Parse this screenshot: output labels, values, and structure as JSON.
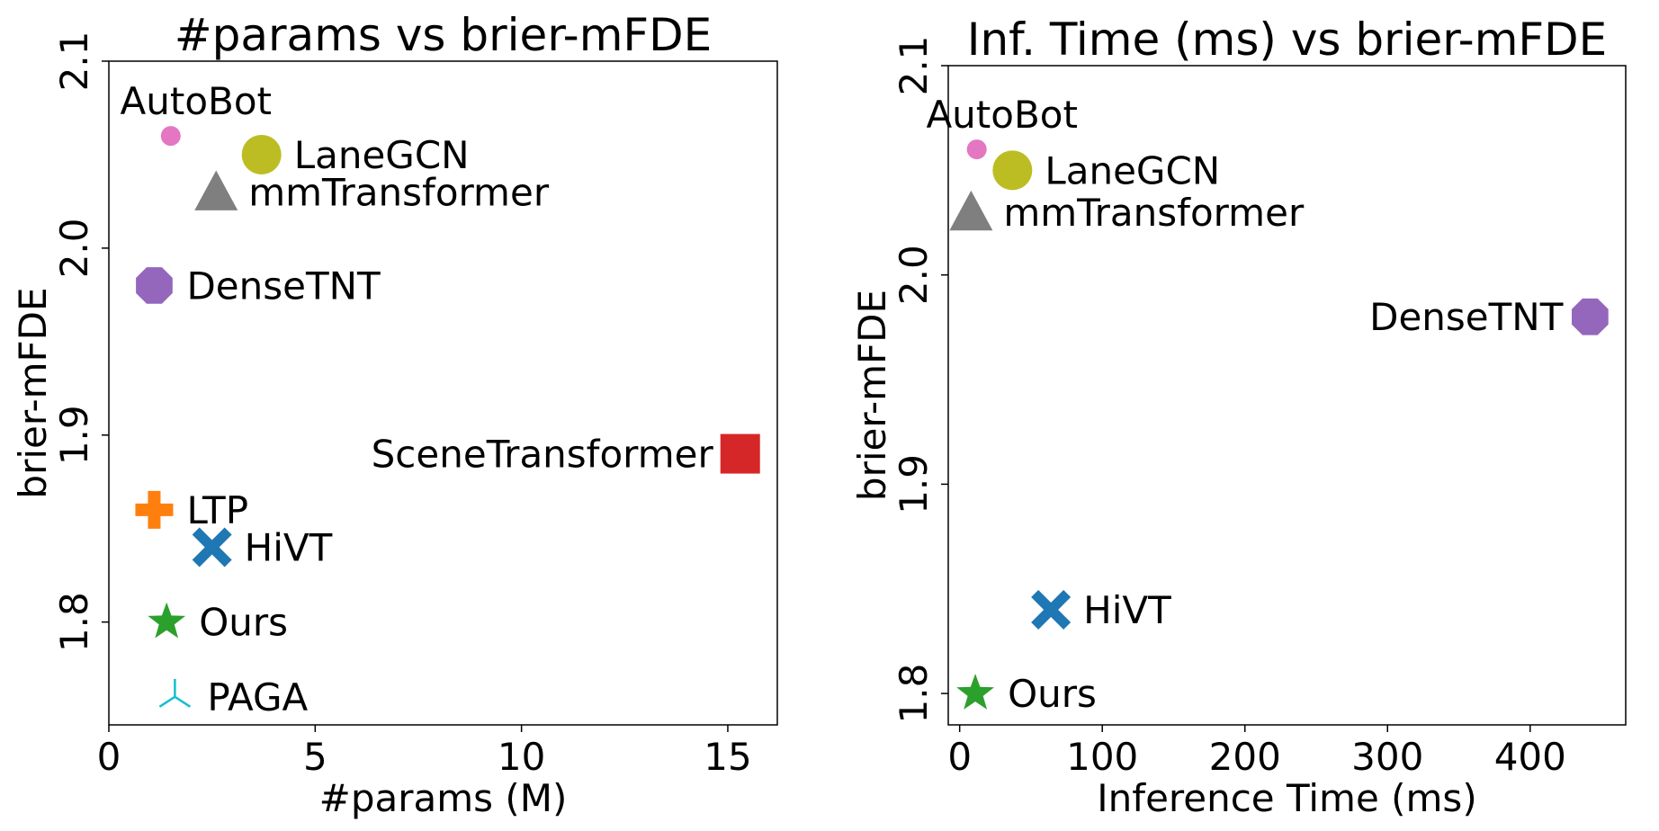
{
  "chart_data": [
    {
      "type": "scatter",
      "title": "#params vs brier-mFDE",
      "xlabel": "#params (M)",
      "ylabel": "brier-mFDE",
      "xlim": [
        0,
        16.2
      ],
      "ylim": [
        1.745,
        2.1
      ],
      "xticks": [
        0,
        5,
        10,
        15
      ],
      "yticks": [
        1.8,
        1.9,
        2.0,
        2.1
      ],
      "xtick_labels": [
        "0",
        "5",
        "10",
        "15"
      ],
      "ytick_labels": [
        "1.8",
        "1.9",
        "2.0",
        "2.1"
      ],
      "grid": false,
      "points": [
        {
          "label": "AutoBot",
          "x": 1.5,
          "y": 2.06,
          "marker": "circle-small",
          "color": "#e377c2",
          "label_pos": "above"
        },
        {
          "label": "LaneGCN",
          "x": 3.7,
          "y": 2.05,
          "marker": "circle",
          "color": "#bcbd22",
          "label_pos": "right"
        },
        {
          "label": "mmTransformer",
          "x": 2.6,
          "y": 2.03,
          "marker": "triangle",
          "color": "#7f7f7f",
          "label_pos": "right"
        },
        {
          "label": "DenseTNT",
          "x": 1.1,
          "y": 1.98,
          "marker": "octagon",
          "color": "#9467bd",
          "label_pos": "right"
        },
        {
          "label": "SceneTransformer",
          "x": 15.3,
          "y": 1.89,
          "marker": "square",
          "color": "#d62728",
          "label_pos": "left"
        },
        {
          "label": "LTP",
          "x": 1.1,
          "y": 1.86,
          "marker": "plus",
          "color": "#ff7f0e",
          "label_pos": "right"
        },
        {
          "label": "HiVT",
          "x": 2.5,
          "y": 1.84,
          "marker": "x",
          "color": "#1f77b4",
          "label_pos": "right"
        },
        {
          "label": "Ours",
          "x": 1.4,
          "y": 1.8,
          "marker": "star",
          "color": "#2ca02c",
          "label_pos": "right"
        },
        {
          "label": "PAGA",
          "x": 1.6,
          "y": 1.76,
          "marker": "tri",
          "color": "#17becf",
          "label_pos": "right"
        }
      ]
    },
    {
      "type": "scatter",
      "title": "Inf. Time (ms) vs brier-mFDE",
      "xlabel": "Inference Time (ms)",
      "ylabel": "brier-mFDE",
      "xlim": [
        -8,
        467
      ],
      "ylim": [
        1.785,
        2.1
      ],
      "xticks": [
        0,
        100,
        200,
        300,
        400
      ],
      "yticks": [
        1.8,
        1.9,
        2.0,
        2.1
      ],
      "xtick_labels": [
        "0",
        "100",
        "200",
        "300",
        "400"
      ],
      "ytick_labels": [
        "1.8",
        "1.9",
        "2.0",
        "2.1"
      ],
      "grid": false,
      "points": [
        {
          "label": "AutoBot",
          "x": 12,
          "y": 2.06,
          "marker": "circle-small",
          "color": "#e377c2",
          "label_pos": "above"
        },
        {
          "label": "LaneGCN",
          "x": 37,
          "y": 2.05,
          "marker": "circle",
          "color": "#bcbd22",
          "label_pos": "right"
        },
        {
          "label": "mmTransformer",
          "x": 8,
          "y": 2.03,
          "marker": "triangle",
          "color": "#7f7f7f",
          "label_pos": "right"
        },
        {
          "label": "DenseTNT",
          "x": 442,
          "y": 1.98,
          "marker": "octagon",
          "color": "#9467bd",
          "label_pos": "left"
        },
        {
          "label": "HiVT",
          "x": 64,
          "y": 1.84,
          "marker": "x",
          "color": "#1f77b4",
          "label_pos": "right"
        },
        {
          "label": "Ours",
          "x": 11,
          "y": 1.8,
          "marker": "star",
          "color": "#2ca02c",
          "label_pos": "right"
        }
      ]
    }
  ]
}
